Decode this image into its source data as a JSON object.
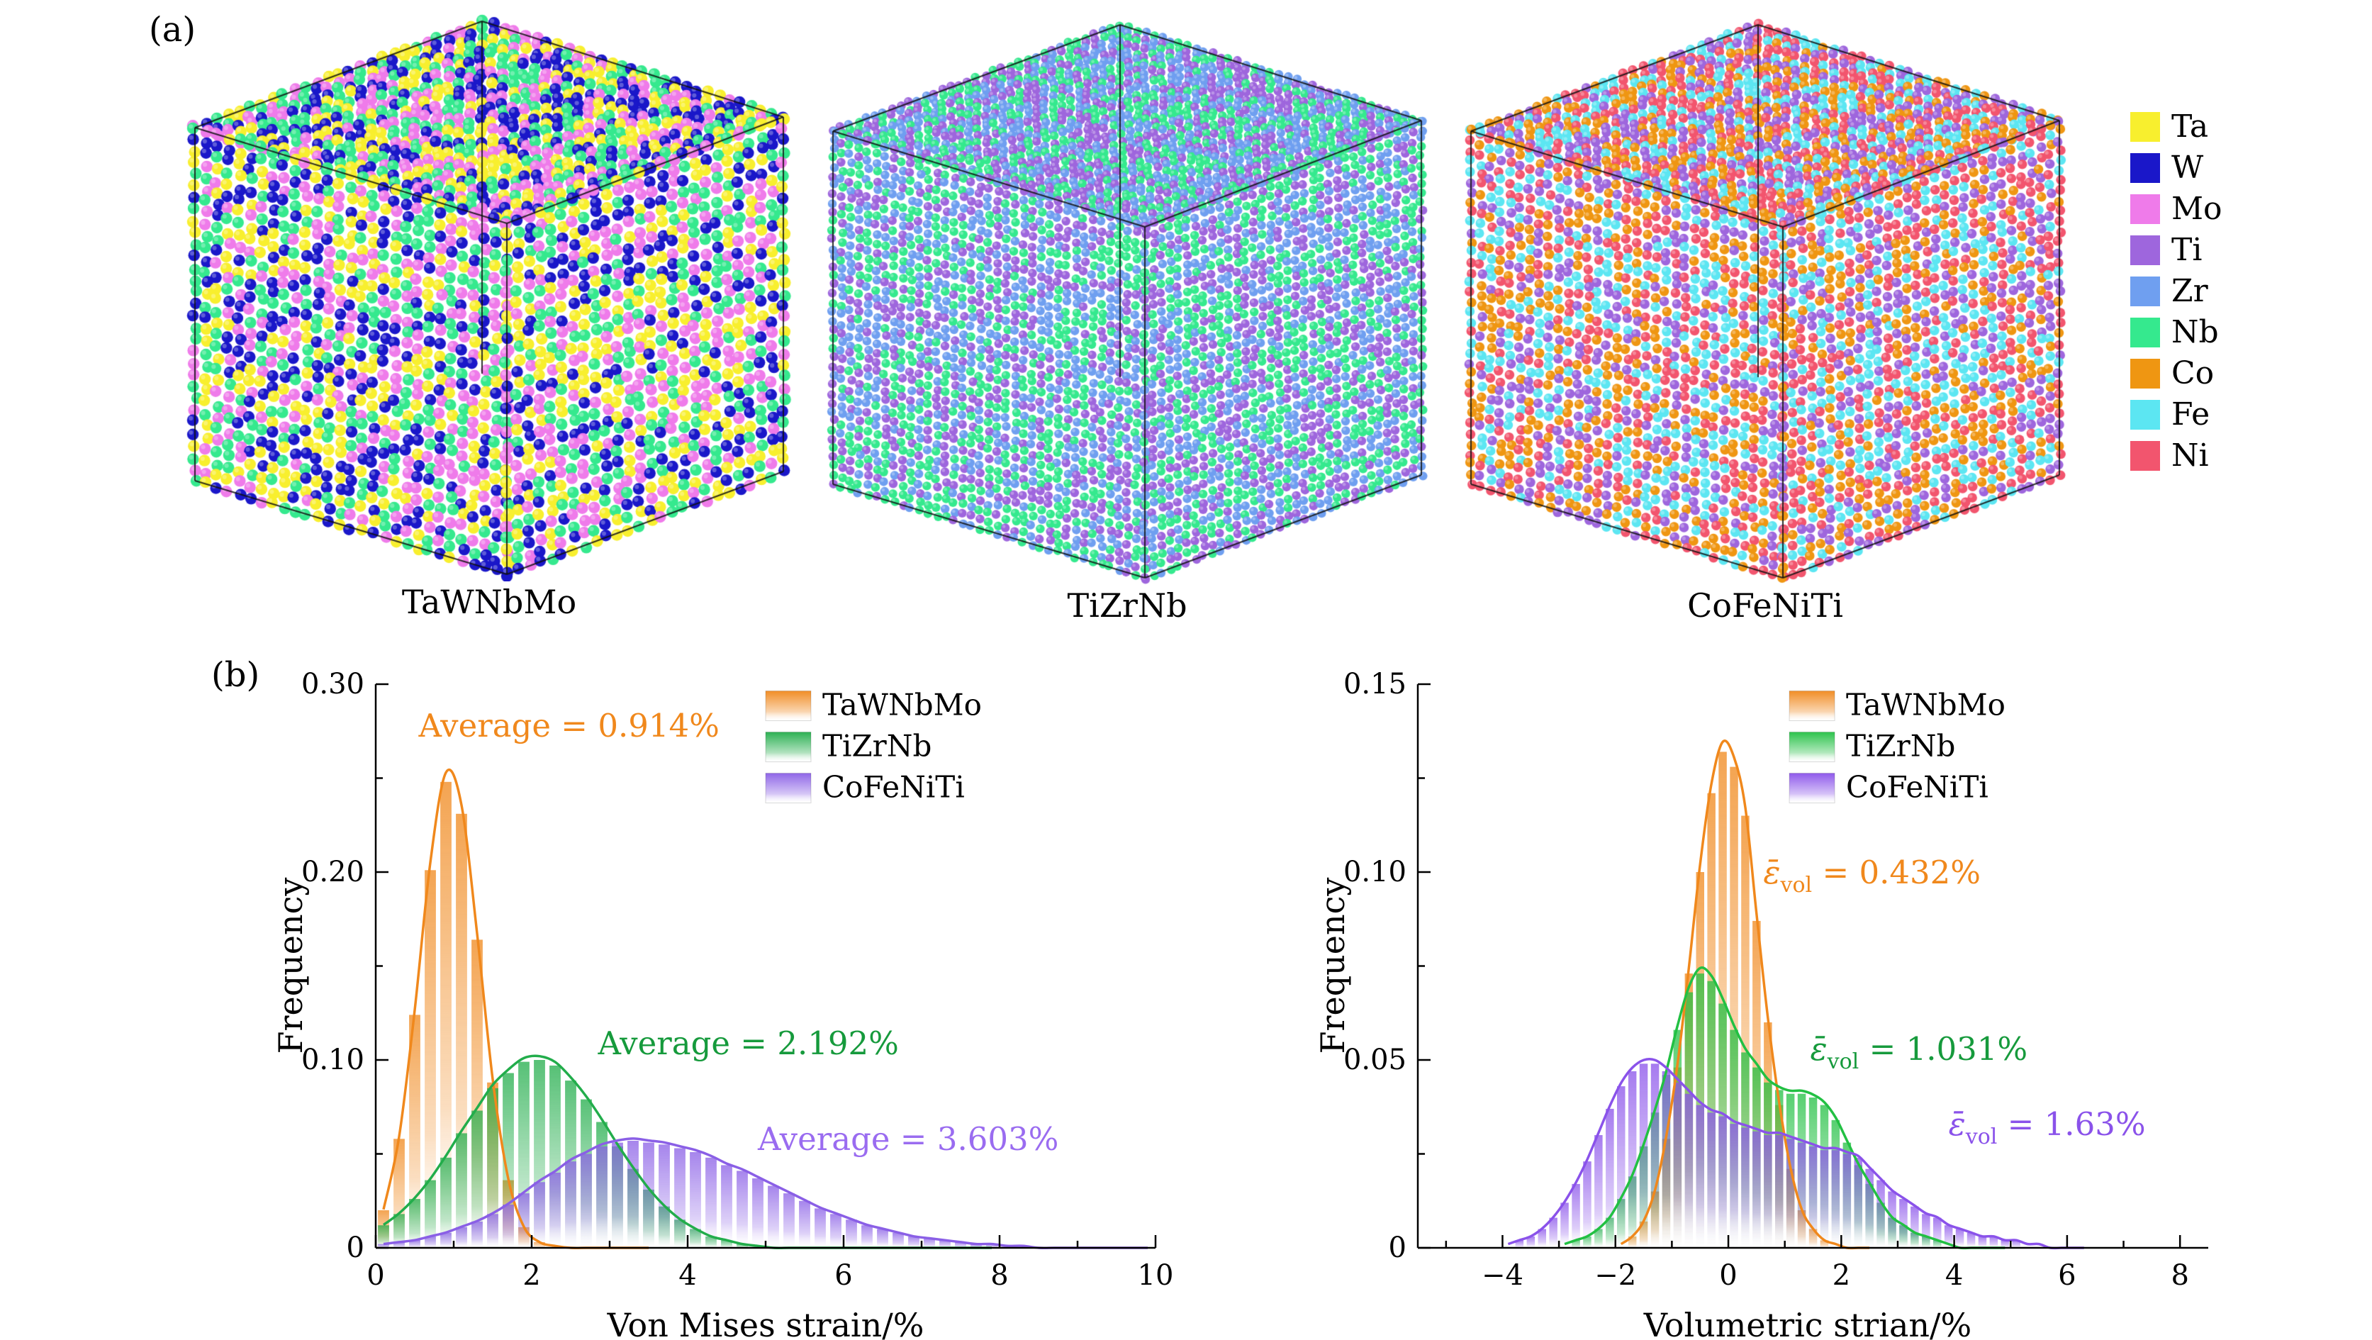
{
  "panel_a": {
    "label": "(a)",
    "cubes": [
      {
        "name": "TaWNbMo",
        "elements": [
          "Ta",
          "W",
          "Nb",
          "Mo"
        ]
      },
      {
        "name": "TiZrNb",
        "elements": [
          "Ti",
          "Zr",
          "Nb"
        ]
      },
      {
        "name": "CoFeNiTi",
        "elements": [
          "Co",
          "Fe",
          "Ni",
          "Ti"
        ]
      }
    ],
    "element_legend": [
      {
        "symbol": "Ta",
        "color": "#f8ef2e"
      },
      {
        "symbol": "W",
        "color": "#1a17c9"
      },
      {
        "symbol": "Mo",
        "color": "#ef7bea"
      },
      {
        "symbol": "Ti",
        "color": "#9e66dd"
      },
      {
        "symbol": "Zr",
        "color": "#6f9ff0"
      },
      {
        "symbol": "Nb",
        "color": "#35e98e"
      },
      {
        "symbol": "Co",
        "color": "#ef9612"
      },
      {
        "symbol": "Fe",
        "color": "#5ce6f2"
      },
      {
        "symbol": "Ni",
        "color": "#f2556e"
      }
    ]
  },
  "panel_b": {
    "label": "(b)"
  },
  "chart_data": [
    {
      "type": "bar",
      "title": "",
      "xlabel": "Von Mises strain/%",
      "ylabel": "Frequency",
      "xlim": [
        0,
        10
      ],
      "ylim": [
        0,
        0.3
      ],
      "x_ticks": [
        {
          "v": 0,
          "label": "0"
        },
        {
          "v": 2,
          "label": "2"
        },
        {
          "v": 4,
          "label": "4"
        },
        {
          "v": 6,
          "label": "6"
        },
        {
          "v": 8,
          "label": "8"
        },
        {
          "v": 10,
          "label": "10"
        }
      ],
      "x_minor": [
        1,
        3,
        5,
        7,
        9
      ],
      "y_ticks": [
        {
          "v": 0,
          "label": "0"
        },
        {
          "v": 0.1,
          "label": "0.10"
        },
        {
          "v": 0.2,
          "label": "0.20"
        },
        {
          "v": 0.3,
          "label": "0.30"
        }
      ],
      "y_minor": [
        0.05,
        0.15,
        0.25
      ],
      "bin_width": 0.2,
      "series": [
        {
          "name": "TaWNbMo",
          "color": "#f0881c",
          "average_percent": 0.914,
          "bin_start": 0.1,
          "values": [
            0.02,
            0.058,
            0.124,
            0.201,
            0.248,
            0.231,
            0.164,
            0.088,
            0.036,
            0.011,
            0.003,
            0.001,
            0,
            0,
            0,
            0,
            0,
            0
          ]
        },
        {
          "name": "TiZrNb",
          "color": "#22ad4b",
          "average_percent": 2.192,
          "bin_start": 0.1,
          "values": [
            0.012,
            0.018,
            0.026,
            0.036,
            0.048,
            0.061,
            0.073,
            0.085,
            0.093,
            0.099,
            0.1,
            0.097,
            0.089,
            0.079,
            0.067,
            0.054,
            0.042,
            0.031,
            0.022,
            0.015,
            0.01,
            0.006,
            0.004,
            0.002,
            0.001,
            0,
            0,
            0,
            0,
            0,
            0,
            0,
            0,
            0,
            0,
            0,
            0,
            0,
            0,
            0
          ]
        },
        {
          "name": "CoFeNiTi",
          "color": "#8a5fe6",
          "average_percent": 3.603,
          "bin_start": 0.1,
          "values": [
            0.002,
            0.003,
            0.004,
            0.006,
            0.008,
            0.011,
            0.014,
            0.018,
            0.023,
            0.029,
            0.035,
            0.04,
            0.046,
            0.05,
            0.054,
            0.056,
            0.057,
            0.056,
            0.055,
            0.053,
            0.051,
            0.048,
            0.044,
            0.041,
            0.037,
            0.033,
            0.029,
            0.025,
            0.021,
            0.018,
            0.015,
            0.012,
            0.01,
            0.008,
            0.006,
            0.005,
            0.004,
            0.003,
            0.002,
            0.002,
            0.001,
            0.001,
            0,
            0,
            0,
            0,
            0,
            0,
            0,
            0
          ]
        }
      ],
      "legend": {
        "fx": 0.5,
        "fy": 0.012,
        "entries": [
          "TaWNbMo",
          "TiZrNb",
          "CoFeNiTi"
        ]
      },
      "annotations": [
        {
          "color": "#f0881c",
          "x": 0.55,
          "y": 0.272,
          "parts": [
            {
              "t": "Average = 0.914%"
            }
          ]
        },
        {
          "color": "#169a3c",
          "x": 2.85,
          "y": 0.103,
          "parts": [
            {
              "t": "Average = 2.192%"
            }
          ]
        },
        {
          "color": "#9a6cf0",
          "x": 4.9,
          "y": 0.052,
          "parts": [
            {
              "t": "Average = 3.603%"
            }
          ]
        }
      ]
    },
    {
      "type": "bar",
      "title": "",
      "xlabel": "Volumetric strian/%",
      "ylabel": "Frequency",
      "xlim": [
        -5.5,
        8.5
      ],
      "ylim": [
        0,
        0.15
      ],
      "x_ticks": [
        {
          "v": -4,
          "label": "−4"
        },
        {
          "v": -2,
          "label": "−2"
        },
        {
          "v": 0,
          "label": "0"
        },
        {
          "v": 2,
          "label": "2"
        },
        {
          "v": 4,
          "label": "4"
        },
        {
          "v": 6,
          "label": "6"
        },
        {
          "v": 8,
          "label": "8"
        }
      ],
      "x_minor": [
        -5,
        -3,
        -1,
        1,
        3,
        5,
        7
      ],
      "y_ticks": [
        {
          "v": 0,
          "label": "0"
        },
        {
          "v": 0.05,
          "label": "0.05"
        },
        {
          "v": 0.1,
          "label": "0.10"
        },
        {
          "v": 0.15,
          "label": "0.15"
        }
      ],
      "y_minor": [
        0.025,
        0.075,
        0.125
      ],
      "bin_width": 0.2,
      "series": [
        {
          "name": "TaWNbMo",
          "color": "#f0881c",
          "mean_vol_strain_percent": 0.432,
          "bin_start": -1.9,
          "values": [
            0.001,
            0.003,
            0.007,
            0.015,
            0.029,
            0.048,
            0.073,
            0.1,
            0.121,
            0.132,
            0.128,
            0.115,
            0.087,
            0.06,
            0.038,
            0.021,
            0.01,
            0.005,
            0.002,
            0.001,
            0,
            0,
            0
          ]
        },
        {
          "name": "TiZrNb",
          "color": "#22c043",
          "mean_vol_strain_percent": 1.031,
          "bin_start": -2.9,
          "values": [
            0.001,
            0.002,
            0.003,
            0.005,
            0.008,
            0.013,
            0.019,
            0.027,
            0.036,
            0.046,
            0.058,
            0.068,
            0.073,
            0.071,
            0.065,
            0.058,
            0.052,
            0.048,
            0.044,
            0.042,
            0.041,
            0.041,
            0.04,
            0.038,
            0.034,
            0.028,
            0.022,
            0.017,
            0.012,
            0.008,
            0.006,
            0.004,
            0.003,
            0.002,
            0.001,
            0,
            0,
            0,
            0,
            0
          ]
        },
        {
          "name": "CoFeNiTi",
          "color": "#8a52ea",
          "mean_vol_strain_percent": 1.63,
          "bin_start": -3.9,
          "values": [
            0.001,
            0.002,
            0.003,
            0.005,
            0.008,
            0.012,
            0.017,
            0.023,
            0.03,
            0.037,
            0.043,
            0.047,
            0.049,
            0.049,
            0.047,
            0.044,
            0.041,
            0.038,
            0.036,
            0.035,
            0.033,
            0.032,
            0.031,
            0.03,
            0.03,
            0.029,
            0.028,
            0.027,
            0.026,
            0.026,
            0.025,
            0.024,
            0.021,
            0.018,
            0.015,
            0.013,
            0.011,
            0.009,
            0.008,
            0.006,
            0.005,
            0.004,
            0.003,
            0.003,
            0.002,
            0.002,
            0.001,
            0.001,
            0,
            0,
            0,
            0
          ]
        }
      ],
      "legend": {
        "fx": 0.47,
        "fy": 0.012,
        "entries": [
          "TaWNbMo",
          "TiZrNb",
          "CoFeNiTi"
        ]
      },
      "annotations": [
        {
          "color": "#f0881c",
          "x": 0.62,
          "y": 0.097,
          "parts": [
            {
              "t": "ε̄",
              "i": true
            },
            {
              "t": "vol",
              "sub": true
            },
            {
              "t": " = 0.432%"
            }
          ]
        },
        {
          "color": "#169a3c",
          "x": 1.45,
          "y": 0.05,
          "parts": [
            {
              "t": "ε̄",
              "i": true
            },
            {
              "t": "vol",
              "sub": true
            },
            {
              "t": " = 1.031%"
            }
          ]
        },
        {
          "color": "#8a52ea",
          "x": 3.9,
          "y": 0.03,
          "parts": [
            {
              "t": "ε̄",
              "i": true
            },
            {
              "t": "vol",
              "sub": true
            },
            {
              "t": " = 1.63%"
            }
          ]
        }
      ]
    }
  ]
}
